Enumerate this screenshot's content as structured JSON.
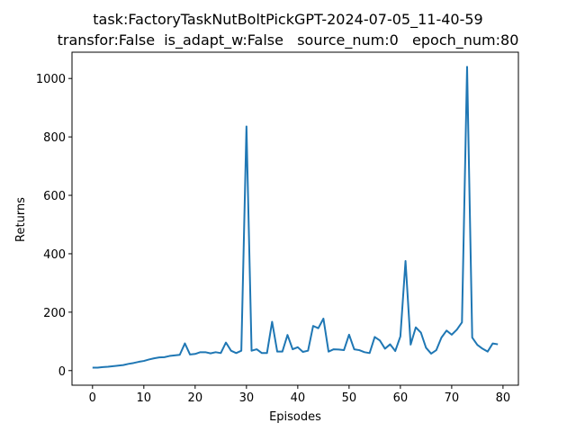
{
  "chart_data": {
    "type": "line",
    "title_line1": "task:FactoryTaskNutBoltPickGPT-2024-07-05_11-40-59",
    "title_line2": "transfor:False  is_adapt_w:False   source_num:0   epoch_num:80",
    "xlabel": "Episodes",
    "ylabel": "Returns",
    "xlim": [
      -4,
      83
    ],
    "ylim": [
      -50,
      1090
    ],
    "xticks": [
      0,
      10,
      20,
      30,
      40,
      50,
      60,
      70,
      80
    ],
    "yticks": [
      0,
      200,
      400,
      600,
      800,
      1000
    ],
    "grid": false,
    "line_color": "#1f77b4",
    "series": [
      {
        "x": [
          0,
          1,
          2,
          3,
          4,
          5,
          6,
          7,
          8,
          9,
          10,
          11,
          12,
          13,
          14,
          15,
          16,
          17,
          18,
          19,
          20,
          21,
          22,
          23,
          24,
          25,
          26,
          27,
          28,
          29,
          30,
          31,
          32,
          33,
          34,
          35,
          36,
          37,
          38,
          39,
          40,
          41,
          42,
          43,
          44,
          45,
          46,
          47,
          48,
          49,
          50,
          51,
          52,
          53,
          54,
          55,
          56,
          57,
          58,
          59,
          60,
          61,
          62,
          63,
          64,
          65,
          66,
          67,
          68,
          69,
          70,
          71,
          72,
          73,
          74,
          75,
          76,
          77,
          78,
          79
        ],
        "y": [
          10,
          10,
          12,
          13,
          15,
          17,
          19,
          23,
          26,
          30,
          33,
          38,
          42,
          45,
          46,
          50,
          52,
          54,
          93,
          55,
          57,
          63,
          63,
          59,
          63,
          60,
          96,
          68,
          60,
          68,
          836,
          68,
          73,
          60,
          60,
          167,
          65,
          65,
          122,
          73,
          80,
          64,
          68,
          153,
          145,
          178,
          65,
          73,
          72,
          70,
          123,
          73,
          70,
          63,
          60,
          115,
          103,
          75,
          90,
          67,
          117,
          375,
          89,
          148,
          130,
          78,
          58,
          70,
          113,
          137,
          123,
          140,
          165,
          1040,
          113,
          88,
          75,
          65,
          93,
          90
        ]
      }
    ]
  }
}
